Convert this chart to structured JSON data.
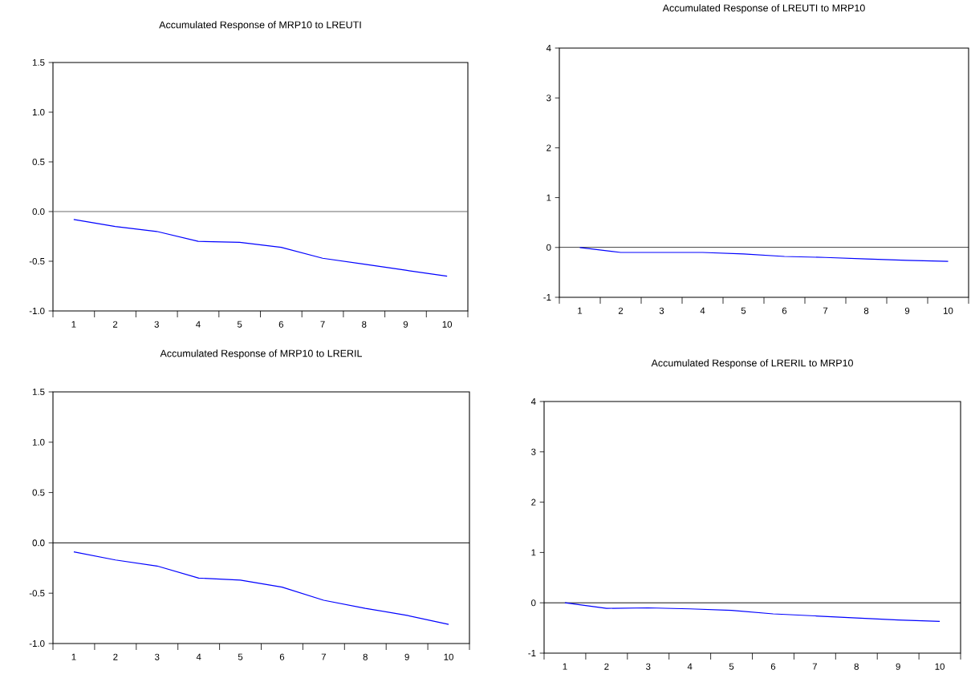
{
  "chart_data": [
    {
      "type": "line",
      "title": "Accumulated Response of MRP10 to LREUTI",
      "categories": [
        "1",
        "2",
        "3",
        "4",
        "5",
        "6",
        "7",
        "8",
        "9",
        "10"
      ],
      "values": [
        -0.08,
        -0.15,
        -0.2,
        -0.3,
        -0.31,
        -0.36,
        -0.47,
        -0.53,
        -0.59,
        -0.65
      ],
      "color": "#0000ff",
      "ylim": [
        -1.0,
        1.5
      ],
      "yticks": [
        {
          "value": -1.0,
          "label": "-1.0"
        },
        {
          "value": -0.5,
          "label": "-0.5"
        },
        {
          "value": 0,
          "label": "0.0"
        },
        {
          "value": 0.5,
          "label": "0.5"
        },
        {
          "value": 1.0,
          "label": "1.0"
        },
        {
          "value": 1.5,
          "label": "1.5"
        }
      ],
      "ref_lines": [
        {
          "axis": "y",
          "value": 0,
          "color": "#606060"
        }
      ]
    },
    {
      "type": "line",
      "title": "Accumulated Response of LREUTI to MRP10",
      "categories": [
        "1",
        "2",
        "3",
        "4",
        "5",
        "6",
        "7",
        "8",
        "9",
        "10"
      ],
      "values": [
        0,
        -0.1,
        -0.1,
        -0.1,
        -0.13,
        -0.18,
        -0.2,
        -0.23,
        -0.26,
        -0.28
      ],
      "color": "#0000ff",
      "ylim": [
        -1,
        4
      ],
      "yticks": [
        -1,
        0,
        1,
        2,
        3,
        4
      ],
      "ref_lines": [
        {
          "axis": "y",
          "value": 0,
          "color": "#000000"
        }
      ]
    },
    {
      "type": "line",
      "title": "Accumulated Response of MRP10 to LRERIL",
      "categories": [
        "1",
        "2",
        "3",
        "4",
        "5",
        "6",
        "7",
        "8",
        "9",
        "10"
      ],
      "values": [
        -0.09,
        -0.17,
        -0.23,
        -0.35,
        -0.37,
        -0.44,
        -0.57,
        -0.65,
        -0.72,
        -0.81
      ],
      "color": "#0000ff",
      "ylim": [
        -1.0,
        1.5
      ],
      "yticks": [
        {
          "value": -1.0,
          "label": "-1.0"
        },
        {
          "value": -0.5,
          "label": "-0.5"
        },
        {
          "value": 0,
          "label": "0.0"
        },
        {
          "value": 0.5,
          "label": "0.5"
        },
        {
          "value": 1.0,
          "label": "1.0"
        },
        {
          "value": 1.5,
          "label": "1.5"
        }
      ],
      "ref_lines": [
        {
          "axis": "y",
          "value": 0,
          "color": "#000000"
        }
      ]
    },
    {
      "type": "line",
      "title": "Accumulated Response of LRERIL to MRP10",
      "categories": [
        "1",
        "2",
        "3",
        "4",
        "5",
        "6",
        "7",
        "8",
        "9",
        "10"
      ],
      "values": [
        0,
        -0.11,
        -0.1,
        -0.12,
        -0.15,
        -0.22,
        -0.26,
        -0.3,
        -0.34,
        -0.37
      ],
      "color": "#0000ff",
      "ylim": [
        -1,
        4
      ],
      "yticks": [
        -1,
        0,
        1,
        2,
        3,
        4
      ],
      "ref_lines": [
        {
          "axis": "y",
          "value": 0,
          "color": "#000000"
        }
      ]
    }
  ]
}
